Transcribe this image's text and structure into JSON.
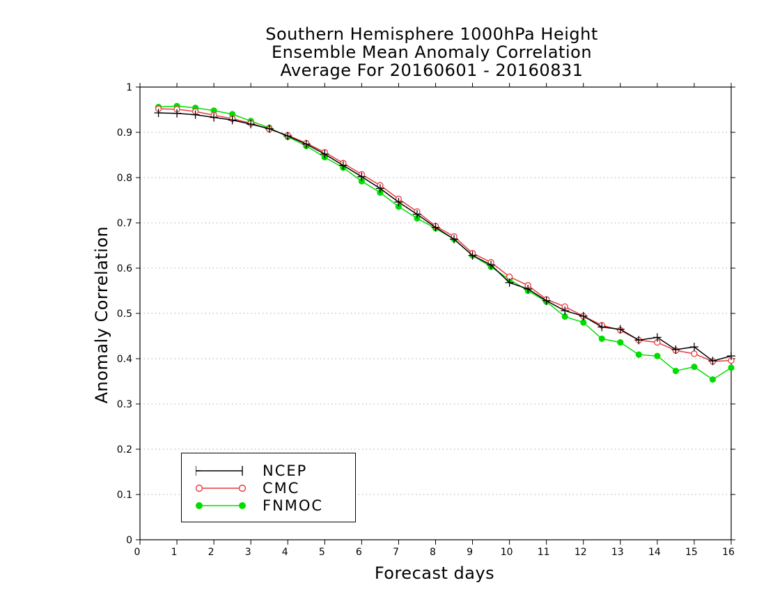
{
  "chart_data": {
    "type": "line",
    "title": [
      "Southern Hemisphere 1000hPa Height",
      "Ensemble Mean Anomaly Correlation",
      "Average For 20160601 - 20160831"
    ],
    "xlabel": "Forecast days",
    "ylabel": "Anomaly Correlation",
    "xlim": [
      0,
      16
    ],
    "ylim": [
      0,
      1
    ],
    "xticks": [
      "0",
      "1",
      "2",
      "3",
      "4",
      "5",
      "6",
      "7",
      "8",
      "9",
      "10",
      "11",
      "12",
      "13",
      "14",
      "15",
      "16"
    ],
    "yticks": [
      "0",
      "0.1",
      "0.2",
      "0.3",
      "0.4",
      "0.5",
      "0.6",
      "0.7",
      "0.8",
      "0.9",
      "1"
    ],
    "grid": "horizontal dotted",
    "legend_position": "bottom-left",
    "x": [
      0.5,
      1,
      1.5,
      2,
      2.5,
      3,
      3.5,
      4,
      4.5,
      5,
      5.5,
      6,
      6.5,
      7,
      7.5,
      8,
      8.5,
      9,
      9.5,
      10,
      10.5,
      11,
      11.5,
      12,
      12.5,
      13,
      13.5,
      14,
      14.5,
      15,
      15.5,
      16
    ],
    "series": [
      {
        "name": "NCEP",
        "color": "#000000",
        "marker": "plus",
        "values": [
          0.943,
          0.942,
          0.939,
          0.933,
          0.927,
          0.918,
          0.908,
          0.892,
          0.874,
          0.852,
          0.827,
          0.802,
          0.776,
          0.746,
          0.719,
          0.69,
          0.664,
          0.628,
          0.607,
          0.568,
          0.554,
          0.528,
          0.506,
          0.494,
          0.47,
          0.465,
          0.441,
          0.447,
          0.42,
          0.426,
          0.395,
          0.406
        ]
      },
      {
        "name": "CMC",
        "color": "#e8383d",
        "marker": "open-circle",
        "values": [
          0.952,
          0.951,
          0.946,
          0.938,
          0.93,
          0.92,
          0.907,
          0.893,
          0.876,
          0.856,
          0.832,
          0.807,
          0.783,
          0.753,
          0.725,
          0.693,
          0.67,
          0.633,
          0.613,
          0.581,
          0.562,
          0.531,
          0.515,
          0.494,
          0.474,
          0.463,
          0.441,
          0.436,
          0.418,
          0.411,
          0.394,
          0.396
        ]
      },
      {
        "name": "FNMOC",
        "color": "#00dd00",
        "marker": "filled-circle",
        "values": [
          0.956,
          0.958,
          0.954,
          0.948,
          0.94,
          0.925,
          0.91,
          0.89,
          0.87,
          0.845,
          0.822,
          0.792,
          0.767,
          0.736,
          0.71,
          0.688,
          0.664,
          0.628,
          0.603,
          0.575,
          0.55,
          0.526,
          0.493,
          0.48,
          0.444,
          0.436,
          0.409,
          0.406,
          0.373,
          0.382,
          0.354,
          0.38
        ]
      }
    ]
  }
}
